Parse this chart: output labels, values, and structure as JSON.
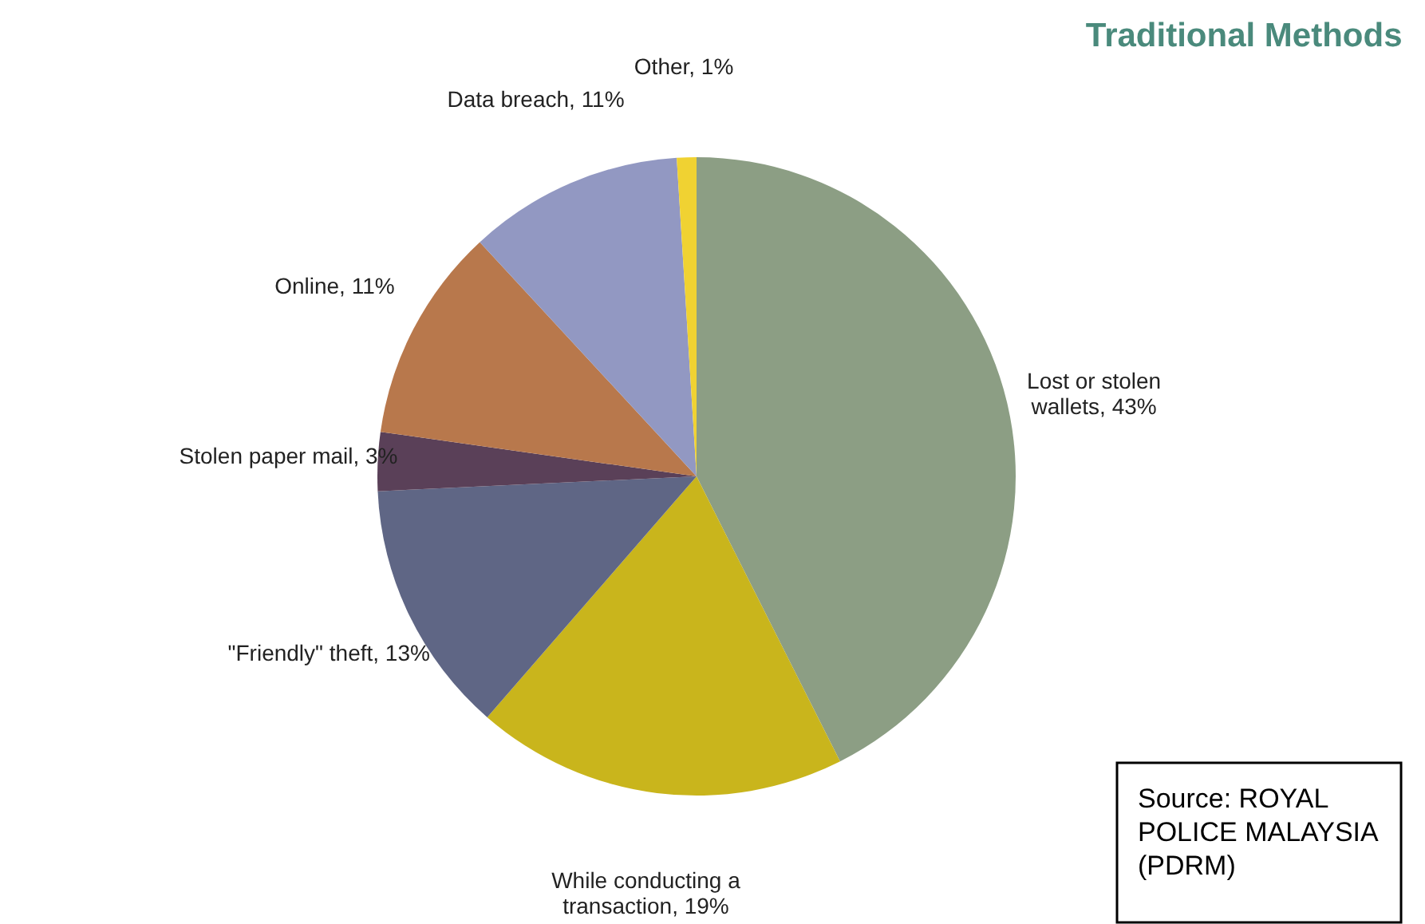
{
  "chart_data": {
    "type": "pie",
    "title": "Traditional Methods",
    "categories": [
      "Lost or stolen wallets, 43%",
      "While conducting a transaction, 19%",
      "\"Friendly\" theft, 13%",
      "Stolen paper mail, 3%",
      "Online, 11%",
      "Data breach, 11%",
      "Other, 1%"
    ],
    "values": [
      43,
      19,
      13,
      3,
      11,
      11,
      1
    ],
    "colors": [
      "#8c9e84",
      "#c9b51c",
      "#5f6685",
      "#5a4058",
      "#b8784c",
      "#9298c2",
      "#f0d232"
    ],
    "legend": false,
    "annotations": [
      "Source: ROYAL POLICE MALAYSIA (PDRM)"
    ]
  }
}
